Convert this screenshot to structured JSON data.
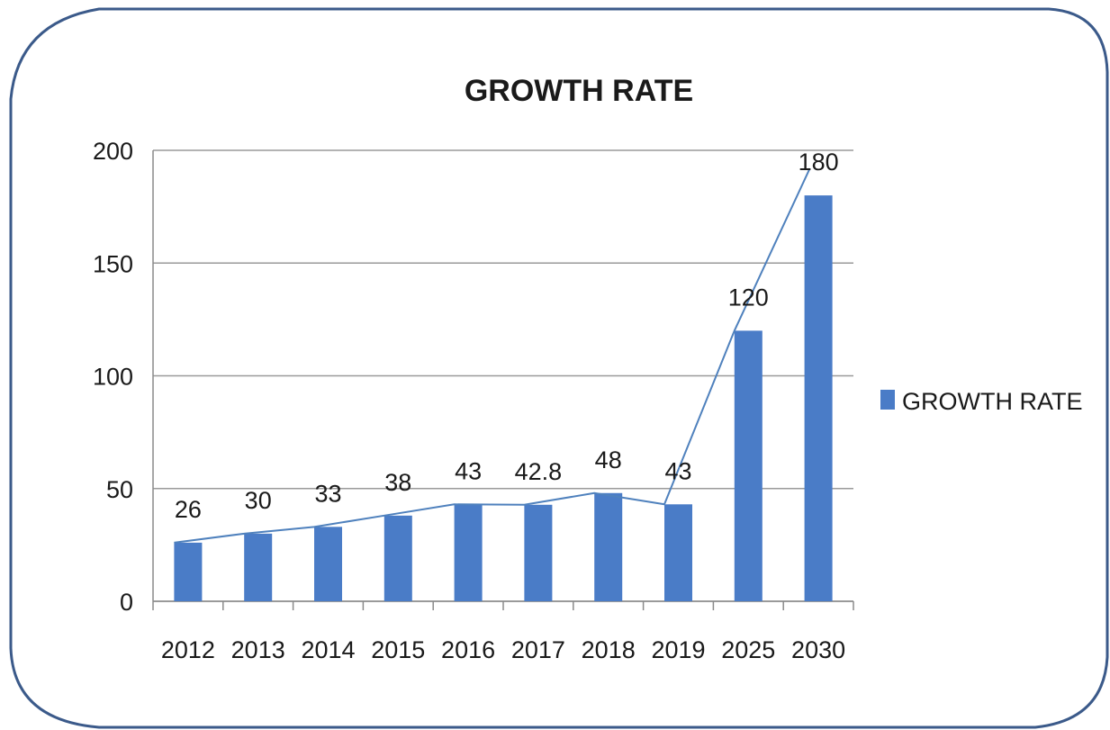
{
  "chart_data": {
    "type": "bar",
    "title": "GROWTH RATE",
    "xlabel": "",
    "ylabel": "",
    "categories": [
      "2012",
      "2013",
      "2014",
      "2015",
      "2016",
      "2017",
      "2018",
      "2019",
      "2025",
      "2030"
    ],
    "series": [
      {
        "name": "GROWTH RATE",
        "values": [
          26,
          30,
          33,
          38,
          43,
          42.8,
          48,
          43,
          120,
          180
        ],
        "data_labels": [
          "26",
          "30",
          "33",
          "38",
          "43",
          "42.8",
          "48",
          "43",
          "120",
          "180"
        ],
        "color": "#4a7cc7"
      }
    ],
    "trend_line": true,
    "trend_color": "#4f81bd",
    "ylim": [
      0,
      200
    ],
    "yticks": [
      "0",
      "50",
      "100",
      "150",
      "200"
    ],
    "grid": true,
    "legend": "right"
  },
  "colors": {
    "bar": "#4a7cc7",
    "frame_border": "#3b5a8a",
    "grid": "#9a9a9a"
  }
}
